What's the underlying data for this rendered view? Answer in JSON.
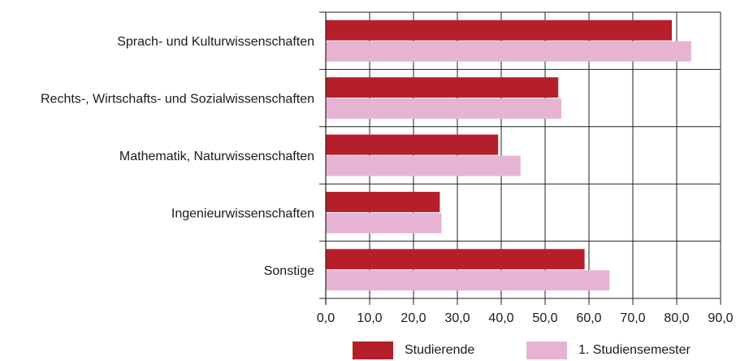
{
  "chart_data": {
    "type": "bar",
    "orientation": "horizontal",
    "categories": [
      "Sprach- und Kulturwissenschaften",
      "Rechts-, Wirtschafts- und Sozialwissenschaften",
      "Mathematik, Naturwissenschaften",
      "Ingenieurwissenschaften",
      "Sonstige"
    ],
    "series": [
      {
        "name": "Studierende",
        "color": "#b41f2a",
        "values": [
          78.9,
          53.0,
          39.3,
          26.0,
          59.0
        ]
      },
      {
        "name": "1. Studiensemester",
        "color": "#e6b4d2",
        "values": [
          83.3,
          53.7,
          44.4,
          26.4,
          64.7
        ]
      }
    ],
    "xlim": [
      0,
      90
    ],
    "ticks": [
      "0,0",
      "10,0",
      "20,0",
      "30,0",
      "40,0",
      "50,0",
      "60,0",
      "70,0",
      "80,0",
      "90,0"
    ],
    "grid": true,
    "legend_position": "bottom",
    "title": "",
    "xlabel": "",
    "ylabel": ""
  }
}
